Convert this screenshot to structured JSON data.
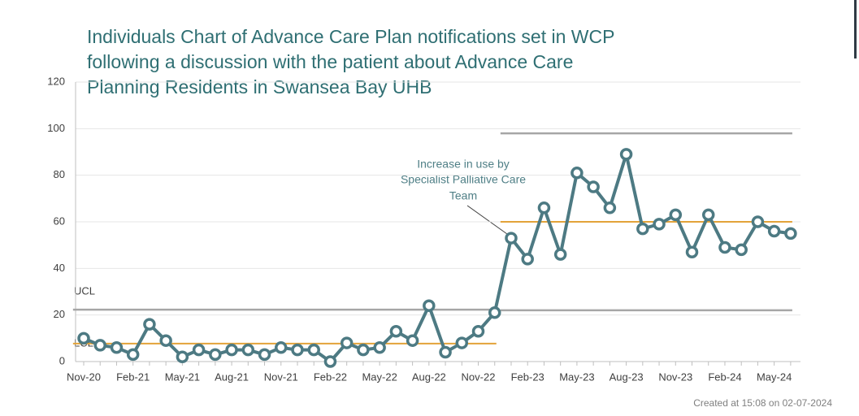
{
  "chart_data": {
    "type": "line",
    "title_lines": [
      "Individuals Chart of Advance Care Plan notifications set in WCP",
      "following a discussion with the patient about Advance Care",
      "Planning Residents in Swansea Bay UHB"
    ],
    "categories": [
      "Nov-20",
      null,
      null,
      "Feb-21",
      null,
      null,
      "May-21",
      null,
      null,
      "Aug-21",
      null,
      null,
      "Nov-21",
      null,
      null,
      "Feb-22",
      null,
      null,
      "May-22",
      null,
      null,
      "Aug-22",
      null,
      null,
      "Nov-22",
      null,
      null,
      "Feb-23",
      null,
      null,
      "May-23",
      null,
      null,
      "Aug-23",
      null,
      null,
      "Nov-23",
      null,
      null,
      "Feb-24",
      null,
      null,
      "May-24",
      null
    ],
    "series": [
      {
        "color": "#4d7a83",
        "values": [
          10,
          7,
          6,
          3,
          16,
          9,
          2,
          5,
          3,
          5,
          5,
          3,
          6,
          5,
          5,
          0,
          8,
          5,
          6,
          13,
          9,
          24,
          4,
          8,
          13,
          21,
          53,
          44,
          66,
          46,
          81,
          75,
          66,
          89,
          57,
          59,
          63,
          47,
          63,
          49,
          48,
          60,
          56,
          55
        ]
      }
    ],
    "center_line": {
      "color": "#e3a33a",
      "values": [
        7.7,
        7.7,
        7.7,
        7.7,
        7.7,
        7.7,
        7.7,
        7.7,
        7.7,
        7.7,
        7.7,
        7.7,
        7.7,
        7.7,
        7.7,
        7.7,
        7.7,
        7.7,
        7.7,
        7.7,
        7.7,
        7.7,
        7.7,
        7.7,
        7.7,
        7.7,
        60,
        60,
        60,
        60,
        60,
        60,
        60,
        60,
        60,
        60,
        60,
        60,
        60,
        60,
        60,
        60,
        60,
        60
      ]
    },
    "limit_lines": {
      "color": "#a6a6a6",
      "upper": [
        22.3,
        22.3,
        22.3,
        22.3,
        22.3,
        22.3,
        22.3,
        22.3,
        22.3,
        22.3,
        22.3,
        22.3,
        22.3,
        22.3,
        22.3,
        22.3,
        22.3,
        22.3,
        22.3,
        22.3,
        22.3,
        22.3,
        22.3,
        22.3,
        22.3,
        22.3,
        98,
        98,
        98,
        98,
        98,
        98,
        98,
        98,
        98,
        98,
        98,
        98,
        98,
        98,
        98,
        98,
        98,
        98
      ],
      "lower": [
        null,
        null,
        null,
        null,
        null,
        null,
        null,
        null,
        null,
        null,
        null,
        null,
        null,
        null,
        null,
        null,
        null,
        null,
        null,
        null,
        null,
        null,
        null,
        null,
        null,
        null,
        22,
        22,
        22,
        22,
        22,
        22,
        22,
        22,
        22,
        22,
        22,
        22,
        22,
        22,
        22,
        22,
        22,
        22
      ]
    },
    "limit_labels": [
      "UCL",
      "LCL"
    ],
    "annotation": [
      "Increase in use by",
      "Specialist Palliative Care",
      "Team"
    ],
    "footer": "Created at 15:08 on 02-07-2024",
    "ylim": [
      0,
      120
    ],
    "yticks": [
      0,
      20,
      40,
      60,
      80,
      100,
      120
    ],
    "grid": true
  }
}
